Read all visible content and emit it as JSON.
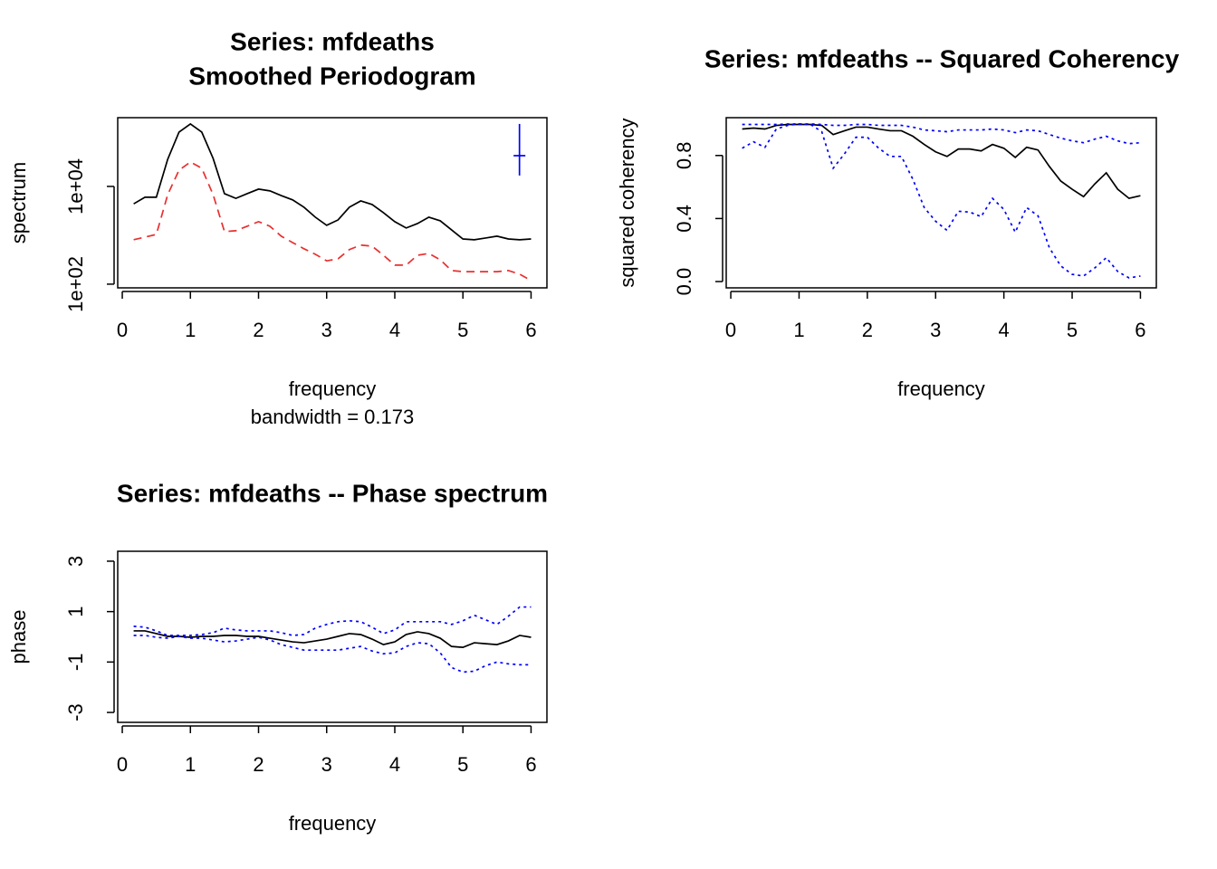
{
  "chart_data": [
    {
      "type": "line",
      "title": "Series: mfdeaths",
      "subtitle": "Smoothed Periodogram",
      "xlabel": "frequency",
      "caption": "bandwidth = 0.173",
      "ylabel": "spectrum",
      "log_y": true,
      "x": [
        0.167,
        0.333,
        0.5,
        0.667,
        0.833,
        1,
        1.167,
        1.333,
        1.5,
        1.667,
        1.833,
        2,
        2.167,
        2.333,
        2.5,
        2.667,
        2.833,
        3,
        3.167,
        3.333,
        3.5,
        3.667,
        3.833,
        4,
        4.167,
        4.333,
        4.5,
        4.667,
        4.833,
        5,
        5.167,
        5.333,
        5.5,
        5.667,
        5.833,
        6
      ],
      "series": [
        {
          "color": "#000000",
          "style": "solid",
          "values": [
            4400,
            6000,
            6000,
            36000,
            129000,
            190000,
            129000,
            37500,
            7100,
            5700,
            7100,
            8800,
            8100,
            6500,
            5300,
            3750,
            2350,
            1600,
            2060,
            3750,
            5050,
            4260,
            2900,
            1900,
            1410,
            1740,
            2350,
            1980,
            1290,
            840,
            810,
            880,
            960,
            840,
            810,
            840
          ]
        },
        {
          "color": "#e8302f",
          "style": "dashed",
          "values": [
            810,
            920,
            1040,
            6800,
            21500,
            31600,
            23500,
            6800,
            1190,
            1240,
            1530,
            1900,
            1530,
            960,
            710,
            530,
            410,
            300,
            330,
            510,
            630,
            600,
            390,
            245,
            245,
            390,
            425,
            315,
            190,
            180,
            180,
            180,
            180,
            190,
            160,
            119
          ]
        }
      ],
      "ci": {
        "color": "#0000ff",
        "x": 5.83,
        "center": 42600,
        "lower": 16700,
        "upper": 190000,
        "width": 0.173
      },
      "xlim": [
        -0.067,
        6.233
      ],
      "xticks": [
        0,
        1,
        2,
        3,
        4,
        5,
        6
      ],
      "ylim": [
        84,
        255000
      ],
      "yticks": [
        {
          "value": 100,
          "label": "1e+02"
        },
        {
          "value": 10000,
          "label": "1e+04"
        }
      ]
    },
    {
      "type": "line",
      "title": "Series: mfdeaths --  Squared Coherency",
      "xlabel": "frequency",
      "ylabel": "squared coherency",
      "x": [
        0.167,
        0.333,
        0.5,
        0.667,
        0.833,
        1,
        1.167,
        1.333,
        1.5,
        1.667,
        1.833,
        2,
        2.167,
        2.333,
        2.5,
        2.667,
        2.833,
        3,
        3.167,
        3.333,
        3.5,
        3.667,
        3.833,
        4,
        4.167,
        4.333,
        4.5,
        4.667,
        4.833,
        5,
        5.167,
        5.333,
        5.5,
        5.667,
        5.833,
        6
      ],
      "series": [
        {
          "color": "#000000",
          "style": "solid",
          "values": [
            0.968,
            0.974,
            0.968,
            0.991,
            0.997,
            0.997,
            0.997,
            0.991,
            0.933,
            0.957,
            0.98,
            0.98,
            0.968,
            0.957,
            0.957,
            0.922,
            0.87,
            0.823,
            0.794,
            0.841,
            0.841,
            0.829,
            0.87,
            0.846,
            0.788,
            0.852,
            0.835,
            0.73,
            0.638,
            0.586,
            0.539,
            0.62,
            0.69,
            0.586,
            0.528,
            0.545
          ]
        },
        {
          "color": "#0000ff",
          "style": "dotted",
          "values": [
            0.997,
            0.997,
            0.997,
            0.997,
            1.0,
            1.0,
            1.0,
            0.997,
            0.991,
            0.991,
            0.997,
            0.997,
            0.991,
            0.991,
            0.991,
            0.98,
            0.962,
            0.957,
            0.951,
            0.962,
            0.962,
            0.962,
            0.968,
            0.962,
            0.945,
            0.962,
            0.957,
            0.933,
            0.91,
            0.893,
            0.881,
            0.904,
            0.922,
            0.893,
            0.875,
            0.881
          ]
        },
        {
          "color": "#0000ff",
          "style": "dotted",
          "values": [
            0.846,
            0.887,
            0.852,
            0.968,
            0.991,
            1.0,
            0.997,
            0.951,
            0.719,
            0.812,
            0.916,
            0.916,
            0.846,
            0.794,
            0.794,
            0.649,
            0.47,
            0.383,
            0.325,
            0.446,
            0.441,
            0.412,
            0.528,
            0.458,
            0.313,
            0.47,
            0.417,
            0.214,
            0.099,
            0.046,
            0.035,
            0.087,
            0.151,
            0.064,
            0.023,
            0.035
          ]
        }
      ],
      "xlim": [
        -0.067,
        6.233
      ],
      "xticks": [
        0,
        1,
        2,
        3,
        4,
        5,
        6
      ],
      "ylim": [
        -0.04,
        1.04
      ],
      "yticks": [
        {
          "value": 0,
          "label": "0.0"
        },
        {
          "value": 0.4,
          "label": "0.4"
        },
        {
          "value": 0.8,
          "label": "0.8"
        }
      ]
    },
    {
      "type": "line",
      "title": "Series: mfdeaths  -- Phase spectrum",
      "xlabel": "frequency",
      "ylabel": "phase",
      "x": [
        0.167,
        0.333,
        0.5,
        0.667,
        0.833,
        1,
        1.167,
        1.333,
        1.5,
        1.667,
        1.833,
        2,
        2.167,
        2.333,
        2.5,
        2.667,
        2.833,
        3,
        3.167,
        3.333,
        3.5,
        3.667,
        3.833,
        4,
        4.167,
        4.333,
        4.5,
        4.667,
        4.833,
        5,
        5.167,
        5.333,
        5.5,
        5.667,
        5.833,
        6
      ],
      "series": [
        {
          "color": "#000000",
          "style": "solid",
          "values": [
            0.236,
            0.236,
            0.127,
            0.018,
            0.018,
            -0.018,
            0.018,
            0.018,
            0.055,
            0.055,
            0.018,
            0.018,
            -0.055,
            -0.127,
            -0.2,
            -0.236,
            -0.164,
            -0.091,
            0.018,
            0.127,
            0.091,
            -0.091,
            -0.309,
            -0.2,
            0.091,
            0.2,
            0.127,
            -0.055,
            -0.382,
            -0.418,
            -0.236,
            -0.273,
            -0.309,
            -0.164,
            0.055,
            -0.018
          ]
        },
        {
          "color": "#0000ff",
          "style": "dotted",
          "values": [
            0.418,
            0.382,
            0.236,
            0.055,
            0.055,
            0.055,
            0.091,
            0.164,
            0.345,
            0.273,
            0.236,
            0.236,
            0.236,
            0.164,
            0.055,
            0.091,
            0.345,
            0.491,
            0.6,
            0.636,
            0.6,
            0.382,
            0.127,
            0.273,
            0.6,
            0.6,
            0.6,
            0.6,
            0.491,
            0.636,
            0.855,
            0.673,
            0.491,
            0.818,
            1.182,
            1.182
          ]
        },
        {
          "color": "#0000ff",
          "style": "dotted",
          "values": [
            0.055,
            0.055,
            -0.018,
            -0.055,
            0.018,
            -0.055,
            -0.055,
            -0.127,
            -0.2,
            -0.164,
            -0.091,
            -0.018,
            -0.127,
            -0.309,
            -0.418,
            -0.527,
            -0.527,
            -0.527,
            -0.527,
            -0.455,
            -0.382,
            -0.564,
            -0.673,
            -0.636,
            -0.382,
            -0.236,
            -0.273,
            -0.636,
            -1.218,
            -1.4,
            -1.364,
            -1.145,
            -1.0,
            -1.073,
            -1.109,
            -1.109
          ]
        }
      ],
      "xlim": [
        -0.067,
        6.233
      ],
      "xticks": [
        0,
        1,
        2,
        3,
        4,
        5,
        6
      ],
      "ylim": [
        -3.393,
        3.393
      ],
      "yticks": [
        3,
        1,
        -1,
        -3
      ]
    }
  ]
}
